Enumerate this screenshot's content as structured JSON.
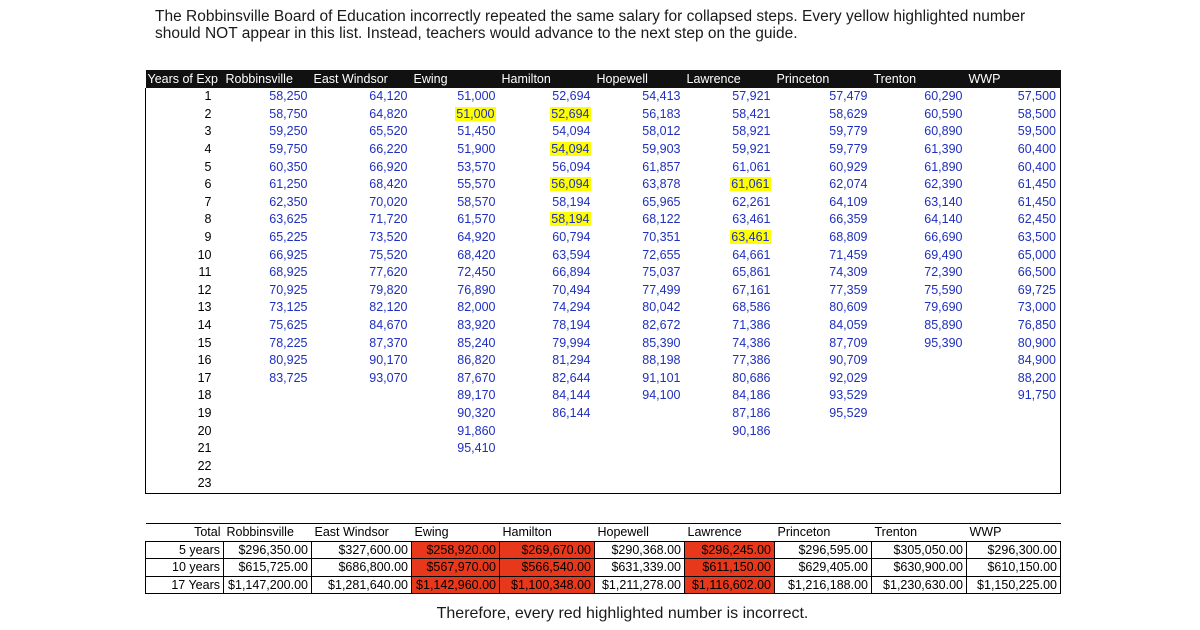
{
  "note": "The Robbinsville Board of Education incorrectly repeated the same salary for collapsed steps. Every yellow highlighted number should NOT appear in this list. Instead, teachers would advance to the next step on the guide.",
  "footer": "Therefore, every red highlighted number is incorrect.",
  "salary_table": {
    "headers": [
      "Years of Exp",
      "Robbinsville",
      "East Windsor",
      "Ewing",
      "Hamilton",
      "Hopewell",
      "Lawrence",
      "Princeton",
      "Trenton",
      "WWP"
    ],
    "rows": [
      [
        "1",
        "58,250",
        "64,120",
        "51,000",
        "52,694",
        "54,413",
        "57,921",
        "57,479",
        "60,290",
        "57,500"
      ],
      [
        "2",
        "58,750",
        "64,820",
        "51,000",
        "52,694",
        "56,183",
        "58,421",
        "58,629",
        "60,590",
        "58,500"
      ],
      [
        "3",
        "59,250",
        "65,520",
        "51,450",
        "54,094",
        "58,012",
        "58,921",
        "59,779",
        "60,890",
        "59,500"
      ],
      [
        "4",
        "59,750",
        "66,220",
        "51,900",
        "54,094",
        "59,903",
        "59,921",
        "59,779",
        "61,390",
        "60,400"
      ],
      [
        "5",
        "60,350",
        "66,920",
        "53,570",
        "56,094",
        "61,857",
        "61,061",
        "60,929",
        "61,890",
        "60,400"
      ],
      [
        "6",
        "61,250",
        "68,420",
        "55,570",
        "56,094",
        "63,878",
        "61,061",
        "62,074",
        "62,390",
        "61,450"
      ],
      [
        "7",
        "62,350",
        "70,020",
        "58,570",
        "58,194",
        "65,965",
        "62,261",
        "64,109",
        "63,140",
        "61,450"
      ],
      [
        "8",
        "63,625",
        "71,720",
        "61,570",
        "58,194",
        "68,122",
        "63,461",
        "66,359",
        "64,140",
        "62,450"
      ],
      [
        "9",
        "65,225",
        "73,520",
        "64,920",
        "60,794",
        "70,351",
        "63,461",
        "68,809",
        "66,690",
        "63,500"
      ],
      [
        "10",
        "66,925",
        "75,520",
        "68,420",
        "63,594",
        "72,655",
        "64,661",
        "71,459",
        "69,490",
        "65,000"
      ],
      [
        "11",
        "68,925",
        "77,620",
        "72,450",
        "66,894",
        "75,037",
        "65,861",
        "74,309",
        "72,390",
        "66,500"
      ],
      [
        "12",
        "70,925",
        "79,820",
        "76,890",
        "70,494",
        "77,499",
        "67,161",
        "77,359",
        "75,590",
        "69,725"
      ],
      [
        "13",
        "73,125",
        "82,120",
        "82,000",
        "74,294",
        "80,042",
        "68,586",
        "80,609",
        "79,690",
        "73,000"
      ],
      [
        "14",
        "75,625",
        "84,670",
        "83,920",
        "78,194",
        "82,672",
        "71,386",
        "84,059",
        "85,890",
        "76,850"
      ],
      [
        "15",
        "78,225",
        "87,370",
        "85,240",
        "79,994",
        "85,390",
        "74,386",
        "87,709",
        "95,390",
        "80,900"
      ],
      [
        "16",
        "80,925",
        "90,170",
        "86,820",
        "81,294",
        "88,198",
        "77,386",
        "90,709",
        "",
        "84,900"
      ],
      [
        "17",
        "83,725",
        "93,070",
        "87,670",
        "82,644",
        "91,101",
        "80,686",
        "92,029",
        "",
        "88,200"
      ],
      [
        "18",
        "",
        "",
        "89,170",
        "84,144",
        "94,100",
        "84,186",
        "93,529",
        "",
        "91,750"
      ],
      [
        "19",
        "",
        "",
        "90,320",
        "86,144",
        "",
        "87,186",
        "95,529",
        "",
        ""
      ],
      [
        "20",
        "",
        "",
        "91,860",
        "",
        "",
        "90,186",
        "",
        "",
        ""
      ],
      [
        "21",
        "",
        "",
        "95,410",
        "",
        "",
        "",
        "",
        "",
        ""
      ],
      [
        "22",
        "",
        "",
        "",
        "",
        "",
        "",
        "",
        "",
        ""
      ],
      [
        "23",
        "",
        "",
        "",
        "",
        "",
        "",
        "",
        "",
        ""
      ]
    ],
    "highlight_color": "#ffff00"
  },
  "totals_table": {
    "headers": [
      "Total",
      "Robbinsville",
      "East Windsor",
      "Ewing",
      "Hamilton",
      "Hopewell",
      "Lawrence",
      "Princeton",
      "Trenton",
      "WWP"
    ],
    "rows": [
      [
        "5 years",
        "$296,350.00",
        "$327,600.00",
        "$258,920.00",
        "$269,670.00",
        "$290,368.00",
        "$296,245.00",
        "$296,595.00",
        "$305,050.00",
        "$296,300.00"
      ],
      [
        "10 years",
        "$615,725.00",
        "$686,800.00",
        "$567,970.00",
        "$566,540.00",
        "$631,339.00",
        "$611,150.00",
        "$629,405.00",
        "$630,900.00",
        "$610,150.00"
      ],
      [
        "17 Years",
        "$1,147,200.00",
        "$1,281,640.00",
        "$1,142,960.00",
        "$1,100,348.00",
        "$1,211,278.00",
        "$1,116,602.00",
        "$1,216,188.00",
        "$1,230,630.00",
        "$1,150,225.00"
      ]
    ],
    "highlight_color": "#e8381c"
  }
}
